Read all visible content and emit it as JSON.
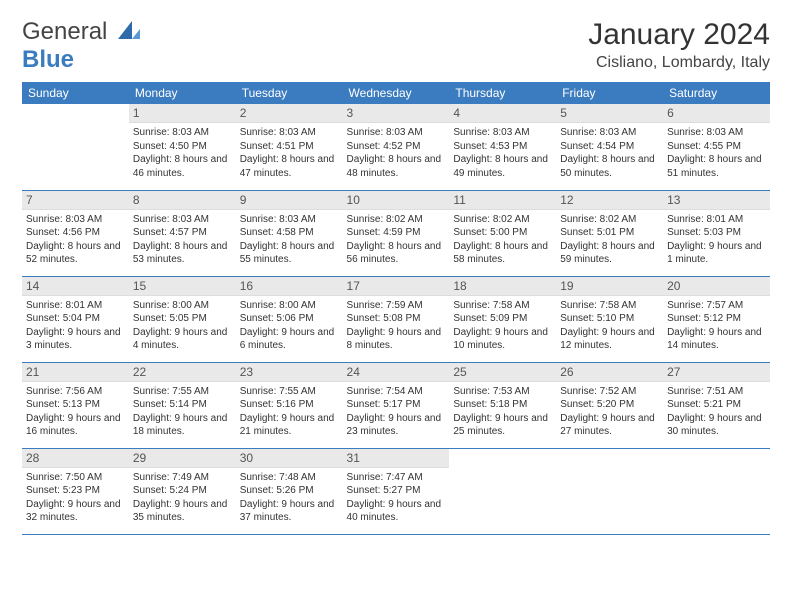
{
  "brand": {
    "part1": "General",
    "part2": "Blue"
  },
  "title": "January 2024",
  "location": "Cisliano, Lombardy, Italy",
  "colors": {
    "accent": "#3b7bbf",
    "header_bg": "#3b7bbf",
    "daynum_bg": "#e9e9e9",
    "text": "#333333",
    "rule": "#3b7bbf"
  },
  "weekdays": [
    "Sunday",
    "Monday",
    "Tuesday",
    "Wednesday",
    "Thursday",
    "Friday",
    "Saturday"
  ],
  "weeks": [
    [
      null,
      {
        "n": "1",
        "sr": "8:03 AM",
        "ss": "4:50 PM",
        "d": "8 hours and 46 minutes."
      },
      {
        "n": "2",
        "sr": "8:03 AM",
        "ss": "4:51 PM",
        "d": "8 hours and 47 minutes."
      },
      {
        "n": "3",
        "sr": "8:03 AM",
        "ss": "4:52 PM",
        "d": "8 hours and 48 minutes."
      },
      {
        "n": "4",
        "sr": "8:03 AM",
        "ss": "4:53 PM",
        "d": "8 hours and 49 minutes."
      },
      {
        "n": "5",
        "sr": "8:03 AM",
        "ss": "4:54 PM",
        "d": "8 hours and 50 minutes."
      },
      {
        "n": "6",
        "sr": "8:03 AM",
        "ss": "4:55 PM",
        "d": "8 hours and 51 minutes."
      }
    ],
    [
      {
        "n": "7",
        "sr": "8:03 AM",
        "ss": "4:56 PM",
        "d": "8 hours and 52 minutes."
      },
      {
        "n": "8",
        "sr": "8:03 AM",
        "ss": "4:57 PM",
        "d": "8 hours and 53 minutes."
      },
      {
        "n": "9",
        "sr": "8:03 AM",
        "ss": "4:58 PM",
        "d": "8 hours and 55 minutes."
      },
      {
        "n": "10",
        "sr": "8:02 AM",
        "ss": "4:59 PM",
        "d": "8 hours and 56 minutes."
      },
      {
        "n": "11",
        "sr": "8:02 AM",
        "ss": "5:00 PM",
        "d": "8 hours and 58 minutes."
      },
      {
        "n": "12",
        "sr": "8:02 AM",
        "ss": "5:01 PM",
        "d": "8 hours and 59 minutes."
      },
      {
        "n": "13",
        "sr": "8:01 AM",
        "ss": "5:03 PM",
        "d": "9 hours and 1 minute."
      }
    ],
    [
      {
        "n": "14",
        "sr": "8:01 AM",
        "ss": "5:04 PM",
        "d": "9 hours and 3 minutes."
      },
      {
        "n": "15",
        "sr": "8:00 AM",
        "ss": "5:05 PM",
        "d": "9 hours and 4 minutes."
      },
      {
        "n": "16",
        "sr": "8:00 AM",
        "ss": "5:06 PM",
        "d": "9 hours and 6 minutes."
      },
      {
        "n": "17",
        "sr": "7:59 AM",
        "ss": "5:08 PM",
        "d": "9 hours and 8 minutes."
      },
      {
        "n": "18",
        "sr": "7:58 AM",
        "ss": "5:09 PM",
        "d": "9 hours and 10 minutes."
      },
      {
        "n": "19",
        "sr": "7:58 AM",
        "ss": "5:10 PM",
        "d": "9 hours and 12 minutes."
      },
      {
        "n": "20",
        "sr": "7:57 AM",
        "ss": "5:12 PM",
        "d": "9 hours and 14 minutes."
      }
    ],
    [
      {
        "n": "21",
        "sr": "7:56 AM",
        "ss": "5:13 PM",
        "d": "9 hours and 16 minutes."
      },
      {
        "n": "22",
        "sr": "7:55 AM",
        "ss": "5:14 PM",
        "d": "9 hours and 18 minutes."
      },
      {
        "n": "23",
        "sr": "7:55 AM",
        "ss": "5:16 PM",
        "d": "9 hours and 21 minutes."
      },
      {
        "n": "24",
        "sr": "7:54 AM",
        "ss": "5:17 PM",
        "d": "9 hours and 23 minutes."
      },
      {
        "n": "25",
        "sr": "7:53 AM",
        "ss": "5:18 PM",
        "d": "9 hours and 25 minutes."
      },
      {
        "n": "26",
        "sr": "7:52 AM",
        "ss": "5:20 PM",
        "d": "9 hours and 27 minutes."
      },
      {
        "n": "27",
        "sr": "7:51 AM",
        "ss": "5:21 PM",
        "d": "9 hours and 30 minutes."
      }
    ],
    [
      {
        "n": "28",
        "sr": "7:50 AM",
        "ss": "5:23 PM",
        "d": "9 hours and 32 minutes."
      },
      {
        "n": "29",
        "sr": "7:49 AM",
        "ss": "5:24 PM",
        "d": "9 hours and 35 minutes."
      },
      {
        "n": "30",
        "sr": "7:48 AM",
        "ss": "5:26 PM",
        "d": "9 hours and 37 minutes."
      },
      {
        "n": "31",
        "sr": "7:47 AM",
        "ss": "5:27 PM",
        "d": "9 hours and 40 minutes."
      },
      null,
      null,
      null
    ]
  ],
  "labels": {
    "sunrise": "Sunrise: ",
    "sunset": "Sunset: ",
    "daylight": "Daylight: "
  }
}
